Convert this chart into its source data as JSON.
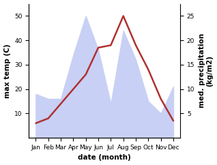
{
  "months": [
    "Jan",
    "Feb",
    "Mar",
    "Apr",
    "May",
    "Jun",
    "Jul",
    "Aug",
    "Sep",
    "Oct",
    "Nov",
    "Dec"
  ],
  "temperature": [
    6,
    8,
    14,
    20,
    26,
    37,
    38,
    50,
    38,
    28,
    16,
    7
  ],
  "precipitation": [
    9,
    8,
    8,
    17,
    25,
    18,
    7,
    22,
    16,
    7.5,
    5,
    10.5
  ],
  "temp_color": "#b03030",
  "precip_fill_color": "#c8d0f5",
  "background_color": "#ffffff",
  "ylabel_left": "max temp (C)",
  "ylabel_right": "med. precipitation\n(kg/m2)",
  "xlabel": "date (month)",
  "ylim_left": [
    0,
    55
  ],
  "ylim_right": [
    0,
    27.5
  ],
  "yticks_left": [
    10,
    20,
    30,
    40,
    50
  ],
  "yticks_right": [
    5,
    10,
    15,
    20,
    25
  ],
  "label_fontsize": 7.5,
  "tick_fontsize": 6.5
}
